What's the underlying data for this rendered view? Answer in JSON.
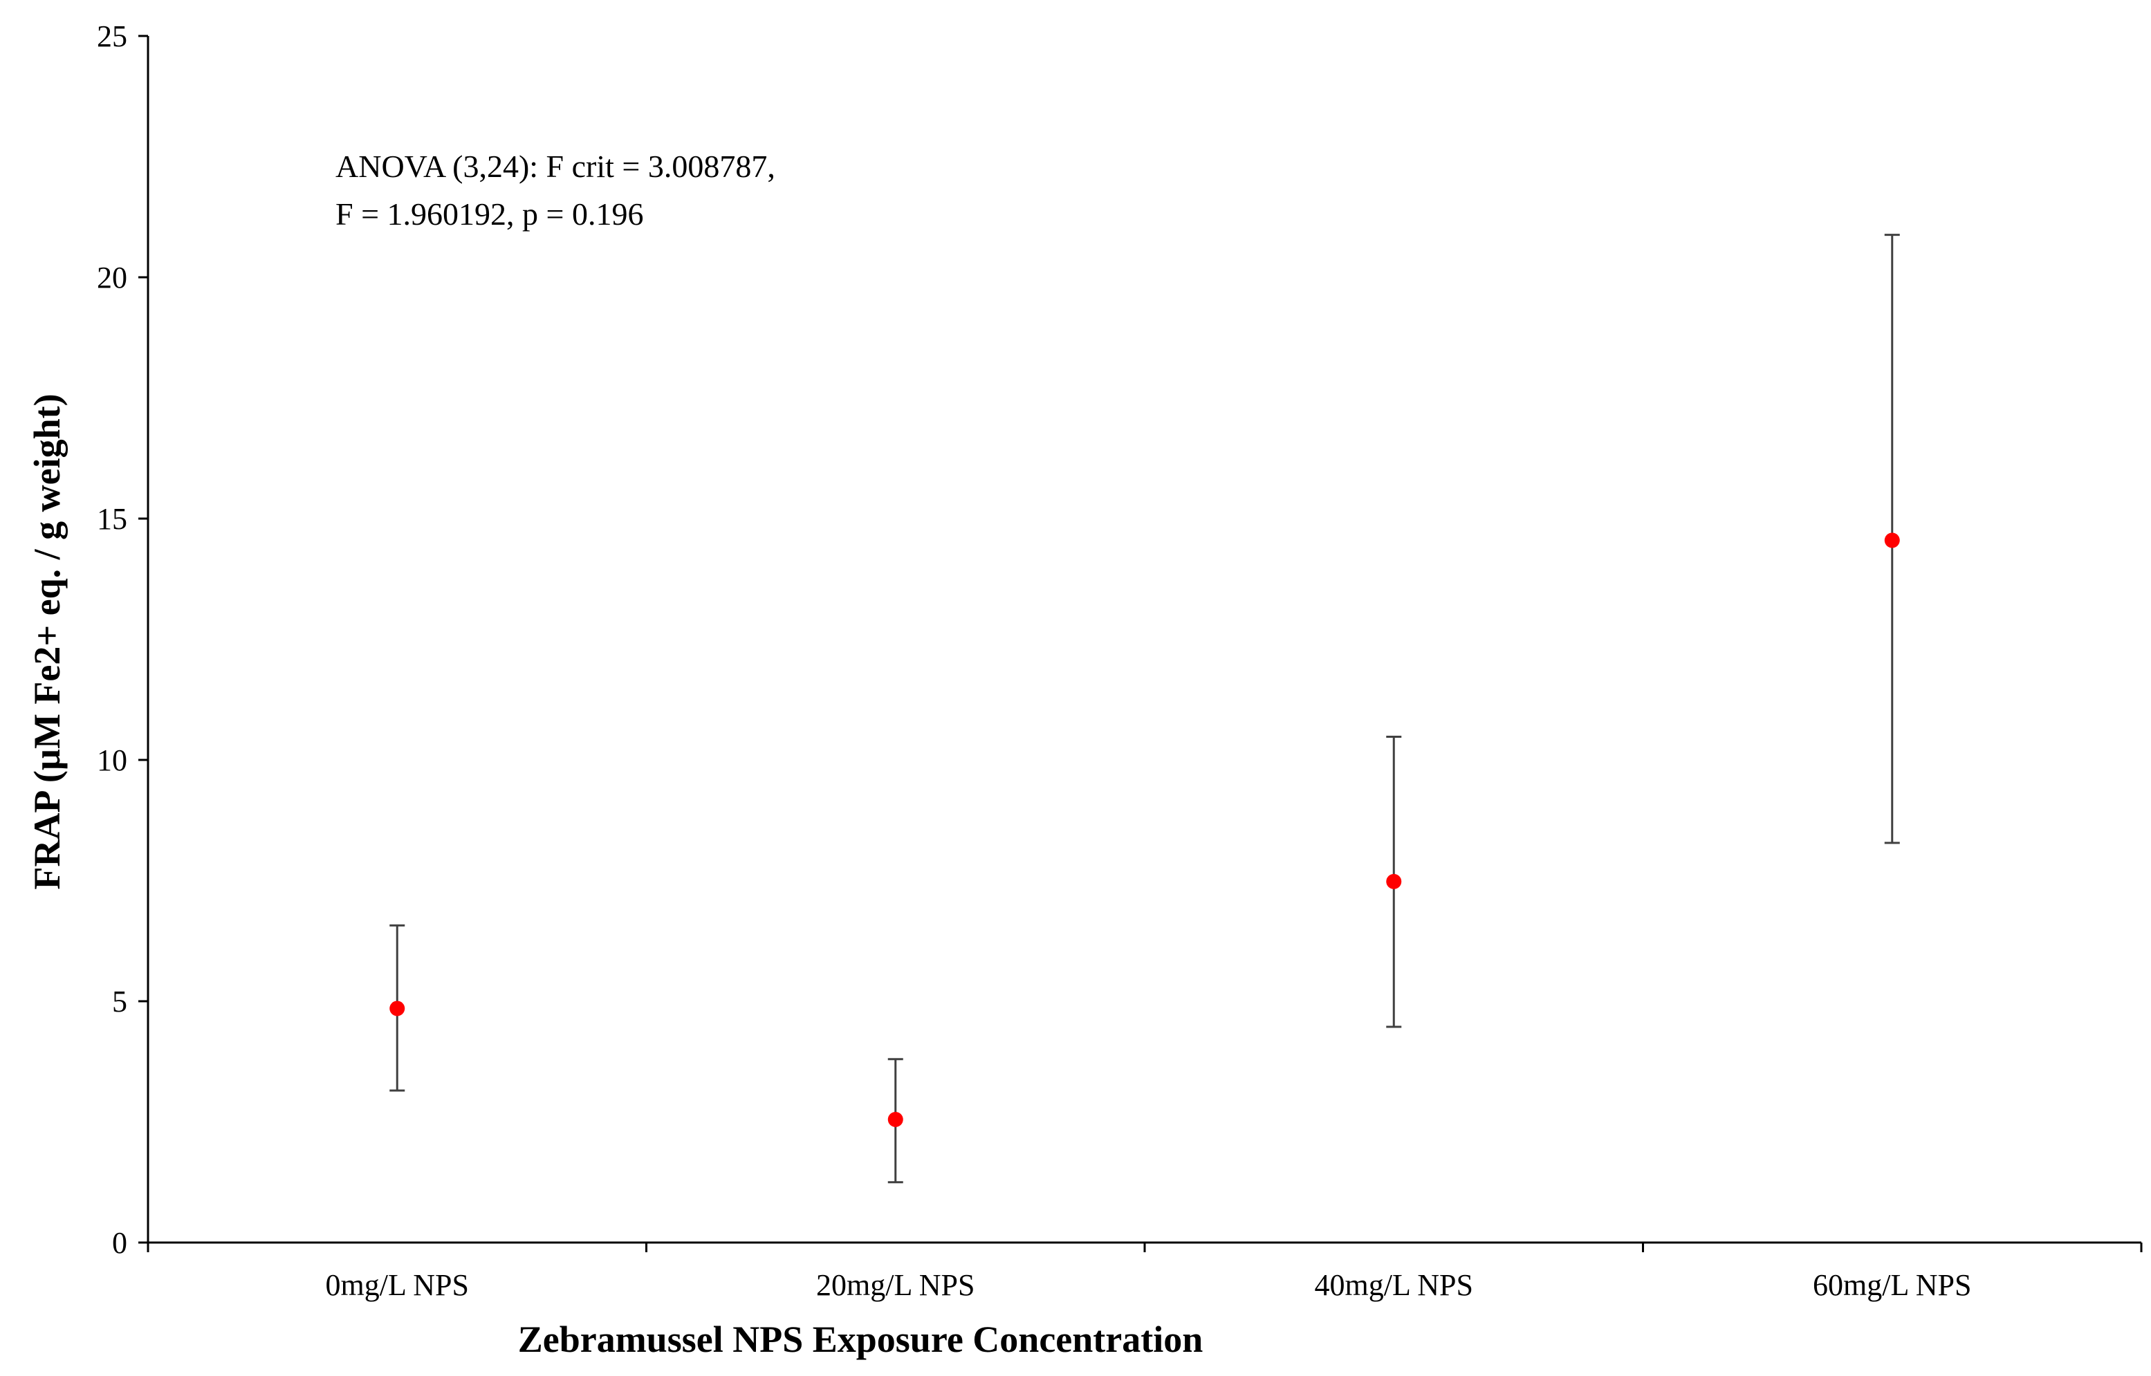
{
  "chart_data": {
    "type": "scatter",
    "xlabel": "Zebramussel NPS Exposure Concentration",
    "ylabel": "FRAP (µM Fe2+ eq. / g weight)",
    "ylim": [
      0,
      25
    ],
    "yticks": [
      0,
      5,
      10,
      15,
      20,
      25
    ],
    "categories": [
      "0mg/L NPS",
      "20mg/L NPS",
      "40mg/L NPS",
      "60mg/L NPS"
    ],
    "series": [
      {
        "values": [
          4.85,
          2.55,
          7.48,
          14.55
        ],
        "error_low": [
          3.15,
          1.25,
          4.47,
          8.28
        ],
        "error_high": [
          6.57,
          3.8,
          10.48,
          20.88
        ]
      }
    ],
    "annotation": [
      "ANOVA (3,24): F crit = 3.008787,",
      "F = 1.960192,  p = 0.196"
    ],
    "colors": {
      "marker": "#ff0000",
      "error_bar": "#404040",
      "axis": "#000000"
    },
    "grid": false,
    "legend": "none"
  }
}
